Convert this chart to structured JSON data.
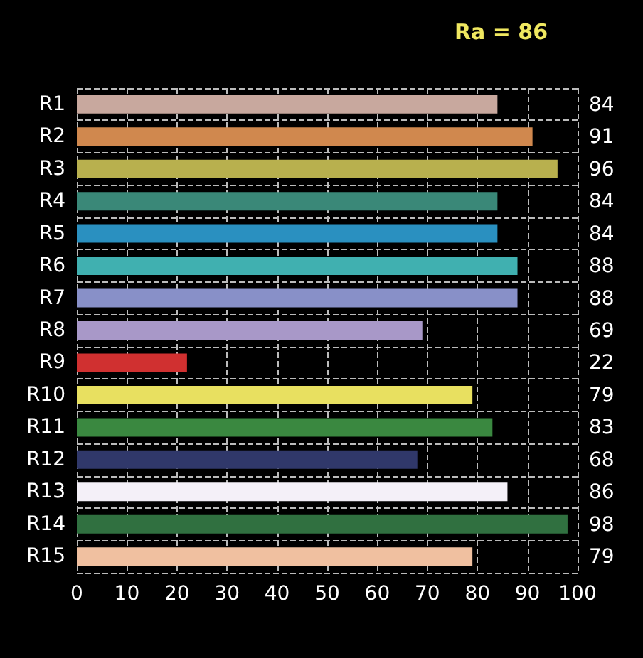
{
  "chart_data": {
    "type": "bar",
    "orientation": "horizontal",
    "title": "Ra = 86",
    "categories": [
      "R1",
      "R2",
      "R3",
      "R4",
      "R5",
      "R6",
      "R7",
      "R8",
      "R9",
      "R10",
      "R11",
      "R12",
      "R13",
      "R14",
      "R15"
    ],
    "values": [
      84,
      91,
      96,
      84,
      84,
      88,
      88,
      69,
      22,
      79,
      83,
      68,
      86,
      98,
      79
    ],
    "colors": [
      "#c8a89e",
      "#d0884e",
      "#b8b04e",
      "#3a8878",
      "#2a90c0",
      "#40b0b0",
      "#8890c8",
      "#a898c8",
      "#d03030",
      "#e8e060",
      "#3a8840",
      "#30386a",
      "#f4f0f8",
      "#307040",
      "#f0c0a0"
    ],
    "xlim": [
      0,
      100
    ],
    "xticks": [
      0,
      10,
      20,
      30,
      40,
      50,
      60,
      70,
      80,
      90,
      100
    ],
    "grid": true,
    "data_labels": true
  }
}
